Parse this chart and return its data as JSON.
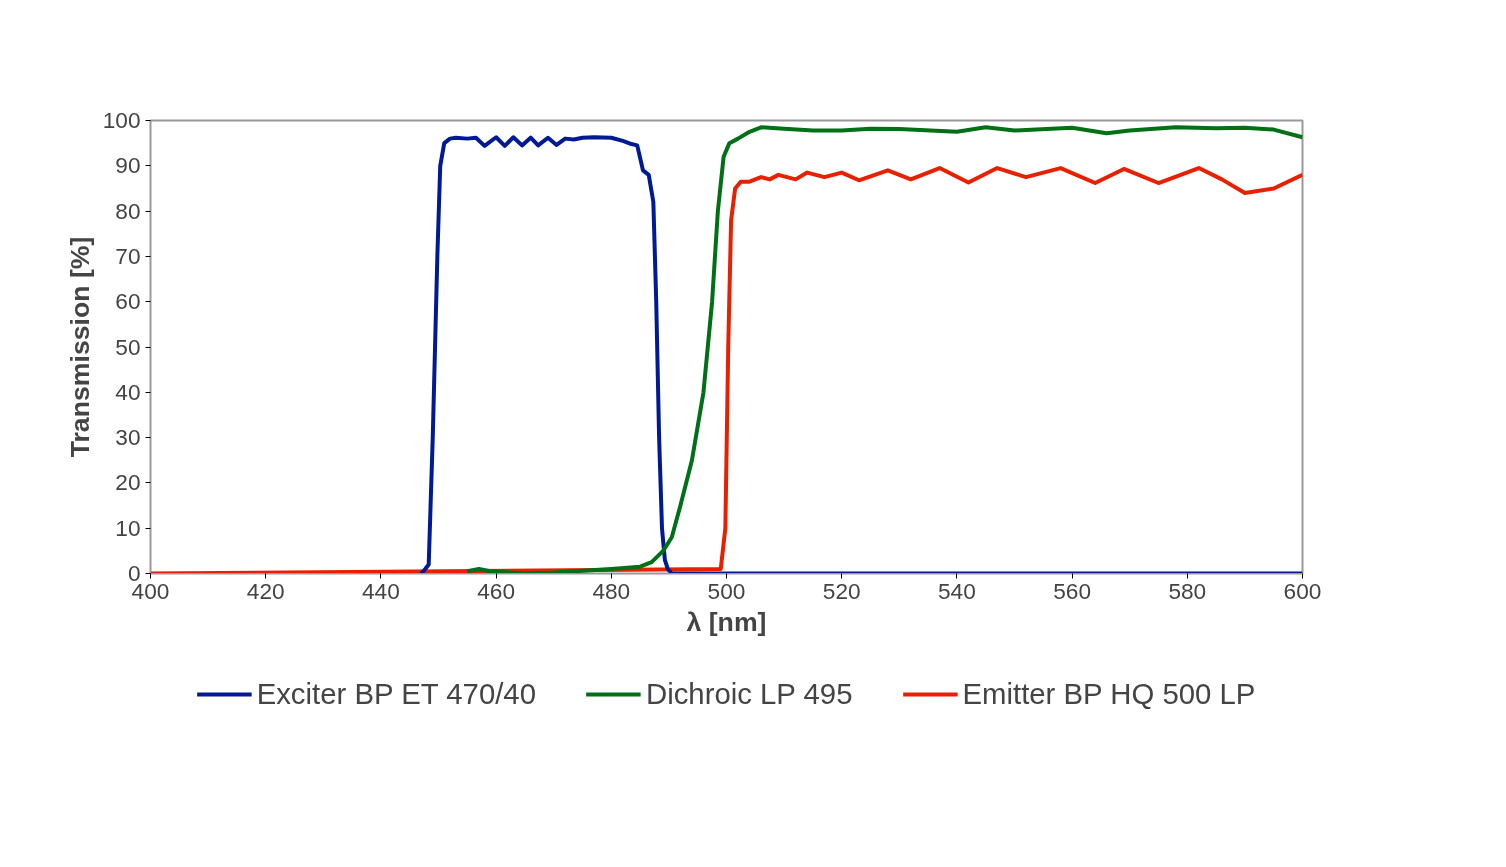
{
  "chart_data": {
    "type": "line",
    "xlabel": "λ [nm]",
    "ylabel": "Transmission [%]",
    "xlim": [
      400,
      600
    ],
    "xticks": [
      400,
      420,
      440,
      460,
      480,
      500,
      520,
      540,
      560,
      580,
      600
    ],
    "ylim": [
      0,
      100
    ],
    "yticks": [
      0,
      10,
      20,
      30,
      40,
      50,
      60,
      70,
      80,
      90,
      100
    ],
    "grid": false,
    "legend": "bottom",
    "marker": "none",
    "line_style": "solid",
    "series": [
      {
        "name": "Exciter BP ET 470/40",
        "color": "#001a96",
        "x": [
          447,
          447.7,
          448.3,
          449,
          449.8,
          450.3,
          451,
          452,
          453,
          455,
          456.5,
          458,
          460,
          461.5,
          463,
          464.5,
          466,
          467.3,
          469,
          470.5,
          472,
          473.5,
          475,
          477,
          480,
          482,
          483.5,
          484.5,
          485.5,
          486.5,
          487.3,
          487.8,
          488.3,
          488.8,
          489.3,
          489.8,
          490.5,
          491,
          600
        ],
        "values": [
          0,
          1,
          2,
          30,
          70,
          90,
          95,
          96,
          96.2,
          96,
          96.2,
          94.4,
          96.3,
          94.4,
          96.3,
          94.5,
          96.2,
          94.5,
          96.2,
          94.6,
          96.0,
          95.8,
          96.2,
          96.3,
          96.2,
          95.5,
          94.8,
          94.5,
          89,
          88,
          82,
          60,
          30,
          10,
          3,
          1,
          0,
          0,
          0
        ]
      },
      {
        "name": "Dichroic LP 495",
        "color": "#007016",
        "x": [
          455,
          457,
          459,
          465,
          470,
          480,
          485,
          487,
          489,
          490.5,
          492,
          494,
          496,
          497.5,
          498.5,
          499.5,
          500.5,
          502,
          504,
          506,
          510,
          515,
          520,
          525,
          530,
          540,
          545,
          550,
          560,
          566,
          570,
          578,
          585,
          590,
          595,
          600
        ],
        "values": [
          0.5,
          1,
          0.5,
          0,
          0.2,
          1,
          1.5,
          2.5,
          5,
          8,
          15,
          25,
          40,
          60,
          80,
          92,
          95,
          96,
          97.5,
          98.5,
          98.2,
          97.8,
          97.8,
          98.2,
          98.1,
          97.5,
          98.5,
          97.8,
          98.4,
          97.2,
          97.8,
          98.5,
          98.3,
          98.4,
          98,
          96.3
        ]
      },
      {
        "name": "Emitter BP HQ 500 LP",
        "color": "#e82000",
        "x": [
          400,
          499,
          499.8,
          500.3,
          500.8,
          501.5,
          502.5,
          504,
          506,
          507.5,
          509,
          512,
          514,
          517,
          520,
          523,
          528,
          532,
          537,
          542,
          547,
          552,
          558,
          564,
          569,
          575,
          582,
          586,
          590,
          595,
          600
        ],
        "values": [
          0,
          1,
          10,
          50,
          78,
          85,
          86.5,
          86.5,
          87.5,
          87,
          88,
          87,
          88.5,
          87.5,
          88.5,
          86.8,
          89,
          87,
          89.5,
          86.3,
          89.5,
          87.5,
          89.5,
          86.2,
          89.3,
          86.2,
          89.5,
          87,
          84,
          85,
          88
        ]
      }
    ]
  }
}
